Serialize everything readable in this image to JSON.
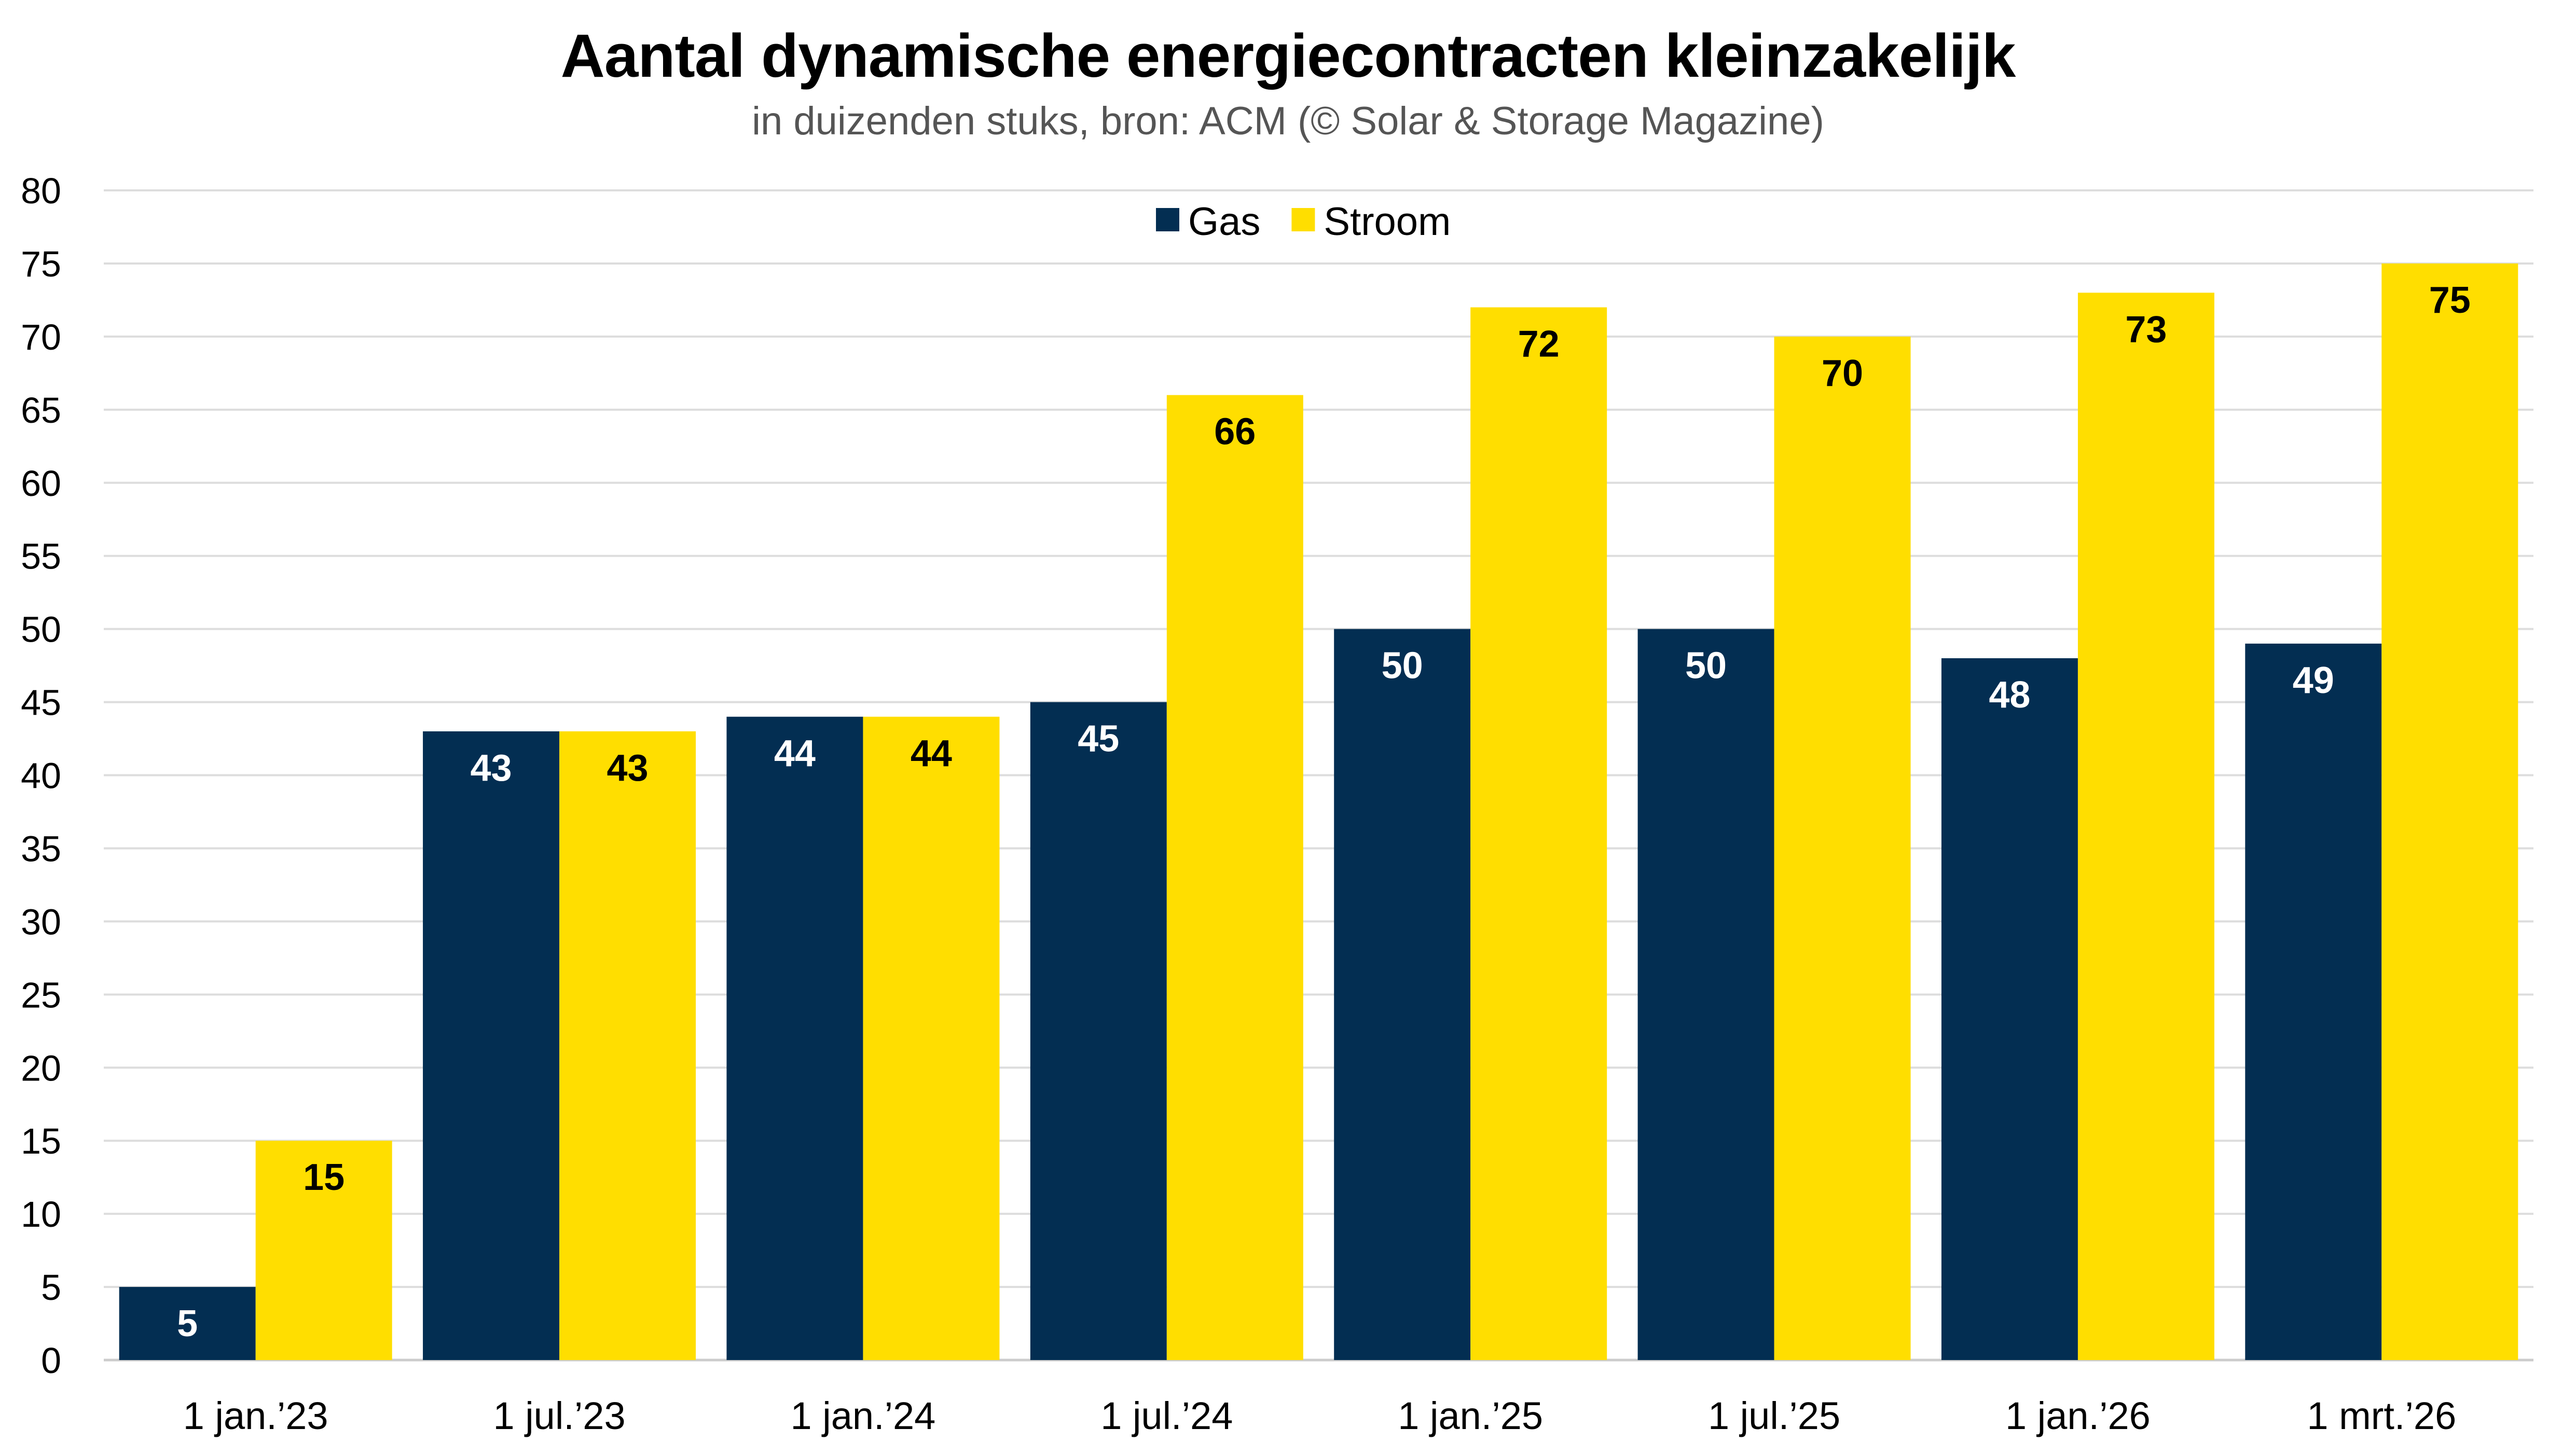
{
  "chart_data": {
    "type": "bar",
    "title": "Aantal dynamische energiecontracten kleinzakelijk",
    "subtitle": "in duizenden stuks, bron: ACM (© Solar & Storage Magazine)",
    "xlabel": "",
    "ylabel": "",
    "ylim": [
      0,
      80
    ],
    "ytick_step": 5,
    "yticks": [
      0,
      5,
      10,
      15,
      20,
      25,
      30,
      35,
      40,
      45,
      50,
      55,
      60,
      65,
      70,
      75,
      80
    ],
    "grid": true,
    "legend_position": "top-center",
    "categories": [
      "1 jan.’23",
      "1 jul.’23",
      "1 jan.’24",
      "1 jul.’24",
      "1 jan.’25",
      "1 jul.’25",
      "1 jan.’26",
      "1 mrt.’26"
    ],
    "series": [
      {
        "name": "Gas",
        "color": "#032e52",
        "label_color": "#ffffff",
        "values": [
          5,
          43,
          44,
          45,
          50,
          50,
          48,
          49
        ]
      },
      {
        "name": "Stroom",
        "color": "#ffde00",
        "label_color": "#000000",
        "values": [
          15,
          43,
          44,
          66,
          72,
          70,
          73,
          75
        ]
      }
    ]
  }
}
